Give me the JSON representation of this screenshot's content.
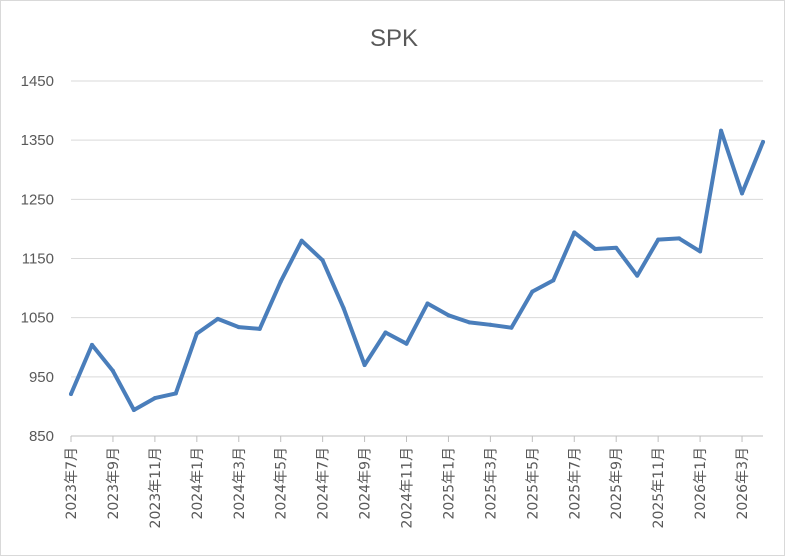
{
  "chart_data": {
    "type": "line",
    "title": "SPK",
    "xlabel": "",
    "ylabel": "",
    "ylim": [
      850,
      1450
    ],
    "yticks": [
      "850",
      "950",
      "1050",
      "1150",
      "1250",
      "1350",
      "1450"
    ],
    "grid": true,
    "legend": "none",
    "colors": {
      "line": "#4a7ebb",
      "grid": "#d9d9d9",
      "axis": "#bfbfbf",
      "text": "#595959"
    },
    "categories": [
      "2023年7月",
      "2023年8月",
      "2023年9月",
      "2023年10月",
      "2023年11月",
      "2023年12月",
      "2024年1月",
      "2024年2月",
      "2024年3月",
      "2024年4月",
      "2024年5月",
      "2024年6月",
      "2024年7月",
      "2024年8月",
      "2024年9月",
      "2024年10月",
      "2024年11月",
      "2024年12月",
      "2025年1月",
      "2025年2月",
      "2025年3月",
      "2025年4月",
      "2025年5月",
      "2025年6月",
      "2025年7月",
      "2025年8月",
      "2025年9月",
      "2025年10月",
      "2025年11月",
      "2025年12月",
      "2026年1月",
      "2026年2月",
      "2026年3月",
      "2026年4月"
    ],
    "xtick_labels": [
      "2023年7月",
      "2023年9月",
      "2023年11月",
      "2024年1月",
      "2024年3月",
      "2024年5月",
      "2024年7月",
      "2024年9月",
      "2024年11月",
      "2025年1月",
      "2025年3月",
      "2025年5月",
      "2025年7月",
      "2025年9月",
      "2025年11月",
      "2026年1月",
      "2026年3月"
    ],
    "series": [
      {
        "values": [
          921,
          1004,
          960,
          894,
          914,
          922,
          1023,
          1048,
          1034,
          1031,
          1111,
          1180,
          1147,
          1066,
          970,
          1025,
          1006,
          1074,
          1054,
          1042,
          1038,
          1033,
          1094,
          1113,
          1194,
          1166,
          1168,
          1121,
          1182,
          1184,
          1162,
          1366,
          1260,
          1347
        ]
      }
    ]
  }
}
